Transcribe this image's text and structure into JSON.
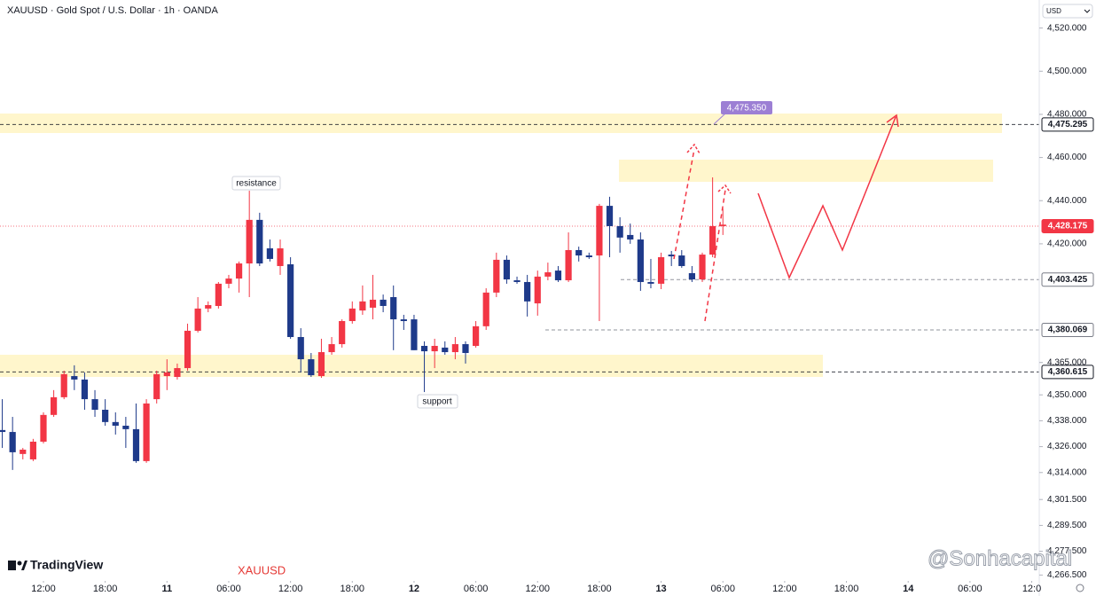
{
  "chart_data": {
    "type": "candlestick",
    "title": "XAUUSD · Gold Spot / U.S. Dollar · 1h · OANDA",
    "currency": "USD",
    "brand": "TradingView",
    "watermark_symbol": "XAUUSD",
    "watermark_author": "@Sonhacapital",
    "annotations": {
      "resistance": "resistance",
      "support": "support",
      "target": {
        "value": 4475.35,
        "label": "4,475.350"
      }
    },
    "up_color": "#f23645",
    "down_color": "#1e3a8a",
    "x": [
      -4,
      -3,
      -2,
      -1,
      0,
      1,
      2,
      3,
      4,
      5,
      6,
      7,
      8,
      9,
      10,
      11,
      12,
      13,
      14,
      15,
      16,
      17,
      18,
      19,
      20,
      21,
      22,
      23,
      24,
      25,
      26,
      27,
      28,
      29,
      30,
      31,
      32,
      33,
      34,
      35,
      36,
      37,
      38,
      39,
      40,
      41,
      42,
      43,
      44,
      45,
      46,
      47,
      48,
      49,
      50,
      51,
      52,
      53,
      54,
      55,
      56,
      57,
      58,
      59,
      60,
      61,
      62,
      63,
      64,
      65,
      66
    ],
    "open": [
      4333.7,
      4332.8,
      4322.6,
      4320.1,
      4328.3,
      4340.7,
      4348.9,
      4358.7,
      4357.1,
      4348,
      4343.1,
      4337.4,
      4335.7,
      4334.1,
      4319.3,
      4348,
      4358.7,
      4358.3,
      4362.4,
      4379.7,
      4390,
      4391.2,
      4401.5,
      4403.9,
      4410.9,
      4431.1,
      4417.9,
      4409.7,
      4410.5,
      4376.8,
      4366.5,
      4358.7,
      4369.8,
      4373.5,
      4384.2,
      4389.1,
      4390.4,
      4394.1,
      4395.3,
      4385,
      4385,
      4372.7,
      4370.2,
      4371.9,
      4369.8,
      4373.5,
      4372.7,
      4381.8,
      4397.4,
      4412.6,
      4403.1,
      4402.3,
      4392.4,
      4404.8,
      4407.6,
      4403.1,
      4417.1,
      4414.6,
      4414.6,
      4437.6,
      4428.2,
      4424.1,
      4422,
      4402.3,
      4401.5,
      4415,
      4414.6,
      4406.4,
      4403.5,
      4415,
      4428.2
    ],
    "high": [
      4348,
      4339.8,
      4325.4,
      4329.6,
      4341.9,
      4352.2,
      4361.2,
      4363.7,
      4360.4,
      4352.2,
      4348,
      4341.9,
      4339.8,
      4346,
      4348,
      4361.2,
      4366.5,
      4364.5,
      4383,
      4395.3,
      4393.3,
      4402.3,
      4405.6,
      4411.8,
      4444.6,
      4434.4,
      4422,
      4422,
      4413.8,
      4380.9,
      4369.4,
      4376,
      4376.8,
      4385,
      4393.3,
      4400.7,
      4405.6,
      4396.5,
      4400.7,
      4387.1,
      4387.1,
      4374.8,
      4376,
      4374.8,
      4376.8,
      4374.8,
      4384.2,
      4399.4,
      4415.9,
      4414.6,
      4404.8,
      4405.6,
      4407.6,
      4411.3,
      4409.7,
      4425.3,
      4418.7,
      4415.9,
      4438.5,
      4441.8,
      4432.3,
      4429.4,
      4425.3,
      4413,
      4415.9,
      4416.7,
      4417.1,
      4409.7,
      4415.9,
      4450.8,
      4436.4
    ],
    "low": [
      4325.4,
      4315.2,
      4320.1,
      4319.3,
      4327.5,
      4339.8,
      4348,
      4352.2,
      4343.1,
      4339.8,
      4335.7,
      4331.6,
      4325.4,
      4318.5,
      4318.5,
      4346,
      4352.2,
      4357.1,
      4361.2,
      4378.9,
      4388.3,
      4390,
      4399.4,
      4397.4,
      4395.3,
      4409.7,
      4411.8,
      4405.6,
      4376,
      4360.4,
      4358.3,
      4357.9,
      4368.6,
      4371.9,
      4383,
      4387.1,
      4385,
      4388.3,
      4370.7,
      4380.1,
      4370.7,
      4351.3,
      4362.4,
      4368.6,
      4366.5,
      4364.5,
      4371.9,
      4380.1,
      4395.3,
      4401.5,
      4401.5,
      4386.3,
      4386.7,
      4403.1,
      4402.3,
      4402.3,
      4411.8,
      4413,
      4384.2,
      4413.8,
      4415.9,
      4420,
      4398.2,
      4399.4,
      4399,
      4409.7,
      4408.9,
      4402.3,
      4402.3,
      4413.8,
      4424.1
    ],
    "close": [
      4332.8,
      4323.4,
      4324.6,
      4328.3,
      4340.7,
      4348.9,
      4359.6,
      4357.1,
      4348,
      4343.1,
      4337.4,
      4335.7,
      4334.1,
      4319.3,
      4346,
      4359.6,
      4360.4,
      4362.4,
      4379.7,
      4390,
      4391.6,
      4401.5,
      4403.9,
      4410.9,
      4431.1,
      4410.9,
      4413,
      4417.9,
      4376.8,
      4366.5,
      4359.1,
      4369.8,
      4373.5,
      4384.2,
      4390,
      4393.3,
      4394.1,
      4391.2,
      4385,
      4384.2,
      4370.7,
      4370.2,
      4372.7,
      4369.8,
      4373.5,
      4369.4,
      4381.8,
      4397.4,
      4412.6,
      4403.5,
      4402.3,
      4393.3,
      4404.8,
      4406.8,
      4403.1,
      4417.1,
      4414.6,
      4413.8,
      4437.6,
      4428.2,
      4422.9,
      4422,
      4402.3,
      4401.5,
      4413.8,
      4414.2,
      4409.7,
      4403.5,
      4415,
      4428.2,
      4428.9
    ],
    "xlim": [
      -4.22,
      96.73
    ],
    "ylim": [
      4265,
      4533
    ],
    "xticks": [
      {
        "value": 0,
        "label": "12:00"
      },
      {
        "value": 6,
        "label": "18:00"
      },
      {
        "value": 12,
        "label": "11"
      },
      {
        "value": 18,
        "label": "06:00"
      },
      {
        "value": 24,
        "label": "12:00"
      },
      {
        "value": 30,
        "label": "18:00"
      },
      {
        "value": 36,
        "label": "12"
      },
      {
        "value": 42,
        "label": "06:00"
      },
      {
        "value": 48,
        "label": "12:00"
      },
      {
        "value": 54,
        "label": "18:00"
      },
      {
        "value": 60,
        "label": "13"
      },
      {
        "value": 66,
        "label": "06:00"
      },
      {
        "value": 72,
        "label": "12:00"
      },
      {
        "value": 78,
        "label": "18:00"
      },
      {
        "value": 84,
        "label": "14"
      },
      {
        "value": 90,
        "label": "06:00"
      },
      {
        "value": 96,
        "label": "12:0"
      }
    ],
    "yticks": [
      {
        "value": 4520,
        "label": "4,520.000"
      },
      {
        "value": 4500,
        "label": "4,500.000"
      },
      {
        "value": 4480,
        "label": "4,480.000"
      },
      {
        "value": 4460,
        "label": "4,460.000"
      },
      {
        "value": 4440,
        "label": "4,440.000"
      },
      {
        "value": 4420,
        "label": "4,420.000"
      },
      {
        "value": 4365,
        "label": "4,365.000"
      },
      {
        "value": 4350,
        "label": "4,350.000"
      },
      {
        "value": 4338,
        "label": "4,338.000"
      },
      {
        "value": 4326,
        "label": "4,326.000"
      },
      {
        "value": 4314,
        "label": "4,314.000"
      },
      {
        "value": 4301.5,
        "label": "4,301.500"
      },
      {
        "value": 4289.5,
        "label": "4,289.500"
      },
      {
        "value": 4277.5,
        "label": "4,277.500"
      },
      {
        "value": 4266.5,
        "label": "4,266.500"
      }
    ],
    "price_levels": [
      {
        "value": 4475.295,
        "label": "4,475.295",
        "color": "#131722"
      },
      {
        "value": 4428.175,
        "label": "4,428.175",
        "color": "#f23645"
      },
      {
        "value": 4403.425,
        "label": "4,403.425",
        "color": "#787b86"
      },
      {
        "value": 4380.069,
        "label": "4,380.069",
        "color": "#787b86"
      },
      {
        "value": 4360.615,
        "label": "4,360.615",
        "color": "#131722"
      }
    ]
  }
}
